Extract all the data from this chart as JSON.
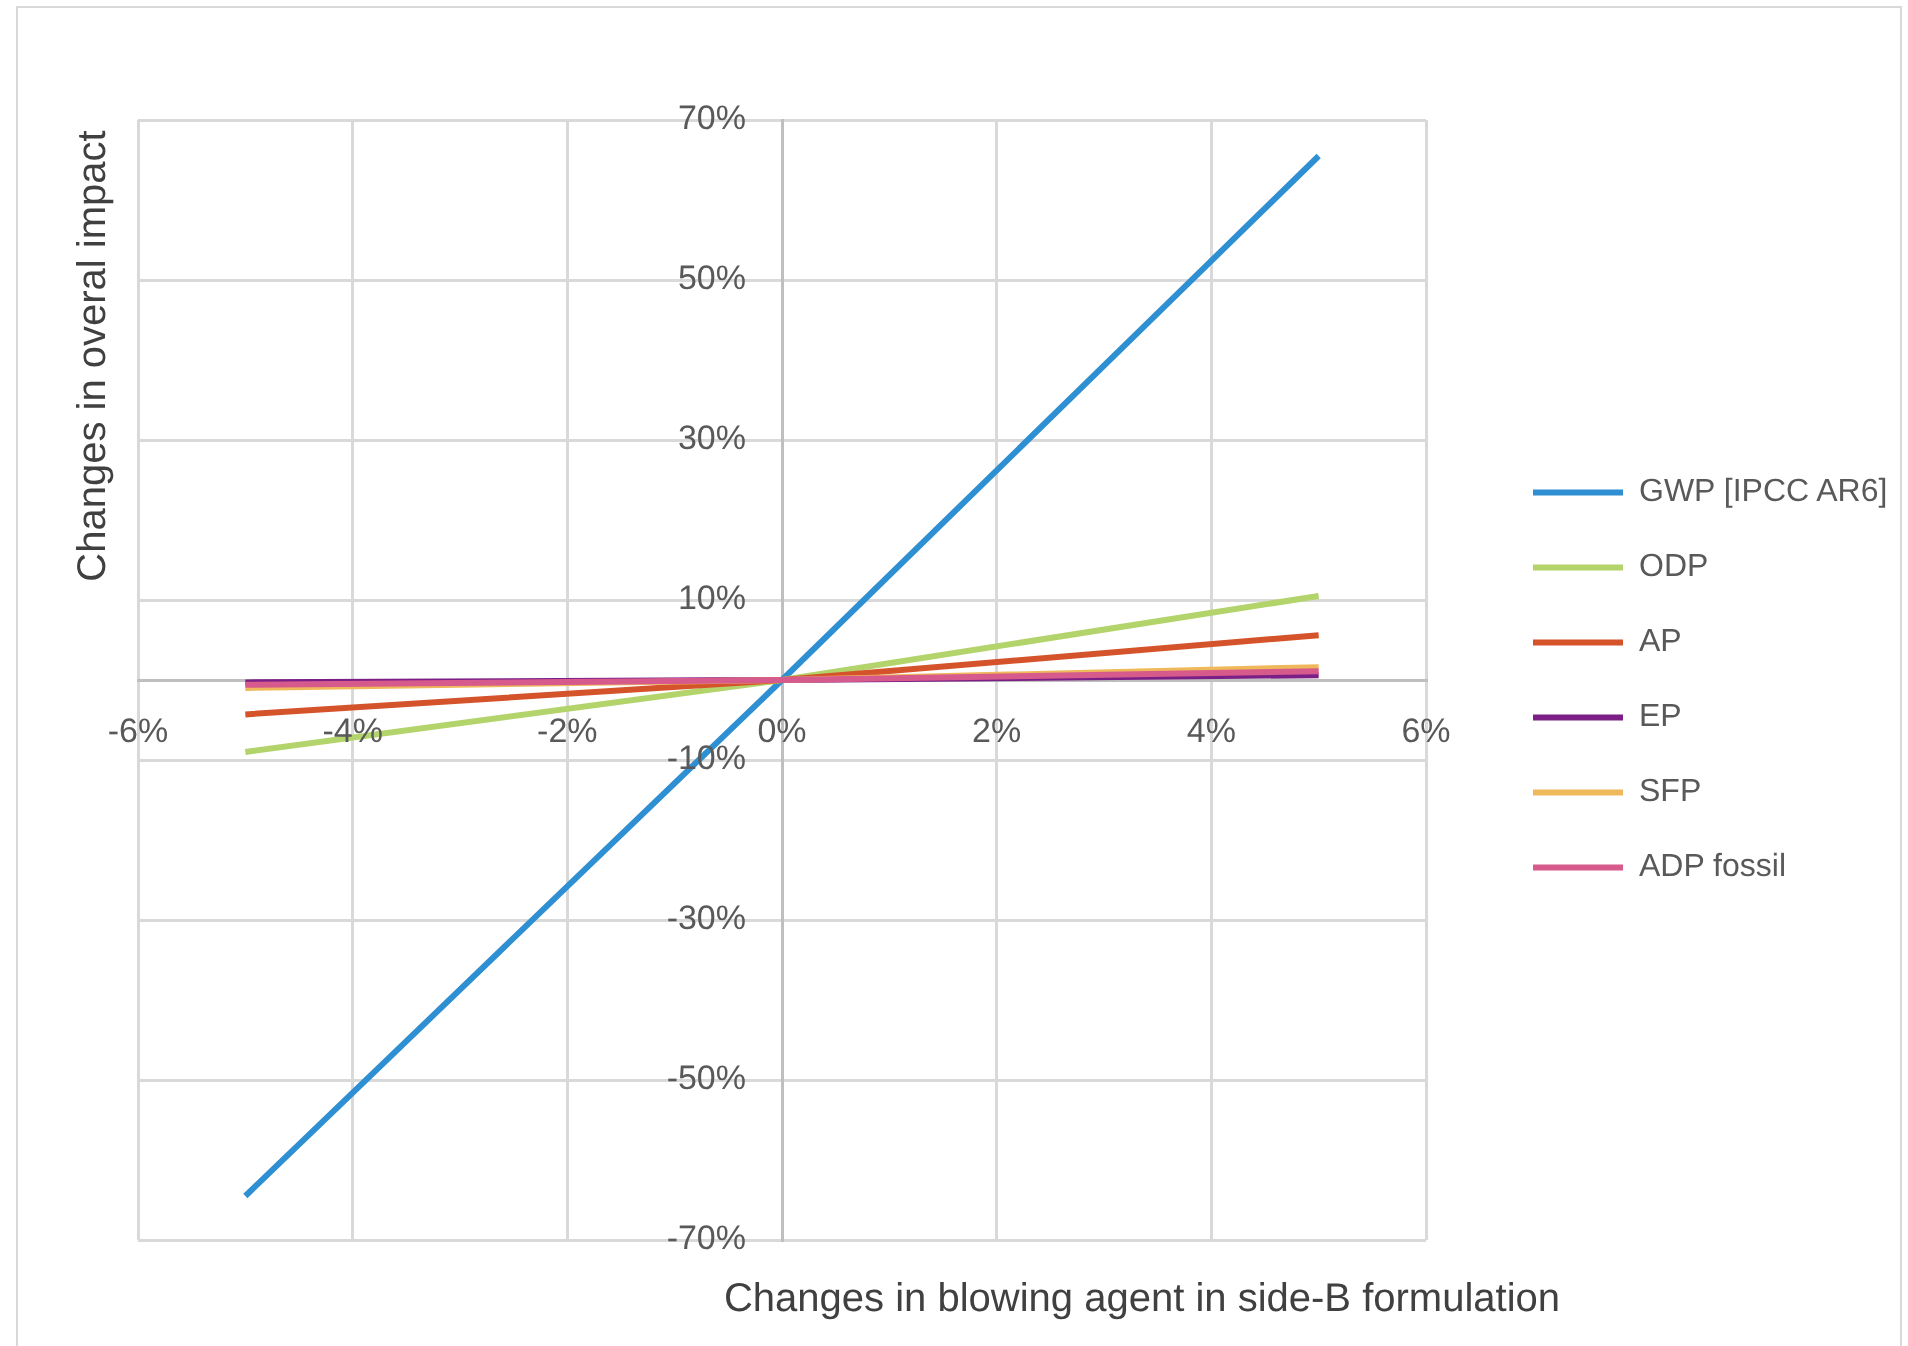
{
  "chart_data": {
    "type": "line",
    "xlabel": "Changes in blowing agent in side-B formulation",
    "ylabel": "Changes in overal impact",
    "x": [
      -5,
      0,
      5
    ],
    "series": [
      {
        "name": "GWP [IPCC AR6]",
        "color": "#2e8fd3",
        "values": [
          -64.5,
          0,
          65.5
        ]
      },
      {
        "name": "ODP",
        "color": "#b3d36b",
        "values": [
          -9,
          0,
          10.5
        ]
      },
      {
        "name": "AP",
        "color": "#d5532b",
        "values": [
          -4.3,
          0,
          5.6
        ]
      },
      {
        "name": "EP",
        "color": "#7b1f86",
        "values": [
          -0.3,
          0,
          0.6
        ]
      },
      {
        "name": "SFP",
        "color": "#efb95b",
        "values": [
          -1,
          0,
          1.6
        ]
      },
      {
        "name": "ADP fossil",
        "color": "#d65a8c",
        "values": [
          -0.6,
          0,
          1.1
        ]
      }
    ],
    "xlim": [
      -6,
      6
    ],
    "xticks": [
      {
        "value": -6,
        "label": "-6%"
      },
      {
        "value": -4,
        "label": "-4%"
      },
      {
        "value": -2,
        "label": "-2%"
      },
      {
        "value": 0,
        "label": "0%"
      },
      {
        "value": 2,
        "label": "2%"
      },
      {
        "value": 4,
        "label": "4%"
      },
      {
        "value": 6,
        "label": "6%"
      }
    ],
    "ylim": [
      -70,
      70
    ],
    "yticks": [
      {
        "value": -70,
        "label": "-70%"
      },
      {
        "value": -50,
        "label": "-50%"
      },
      {
        "value": -30,
        "label": "-30%"
      },
      {
        "value": -10,
        "label": "-10%"
      },
      {
        "value": 10,
        "label": "10%"
      },
      {
        "value": 30,
        "label": "30%"
      },
      {
        "value": 50,
        "label": "50%"
      },
      {
        "value": 70,
        "label": "70%"
      }
    ],
    "grid": true,
    "legend": "right",
    "marker": "none",
    "line_style": "solid"
  }
}
